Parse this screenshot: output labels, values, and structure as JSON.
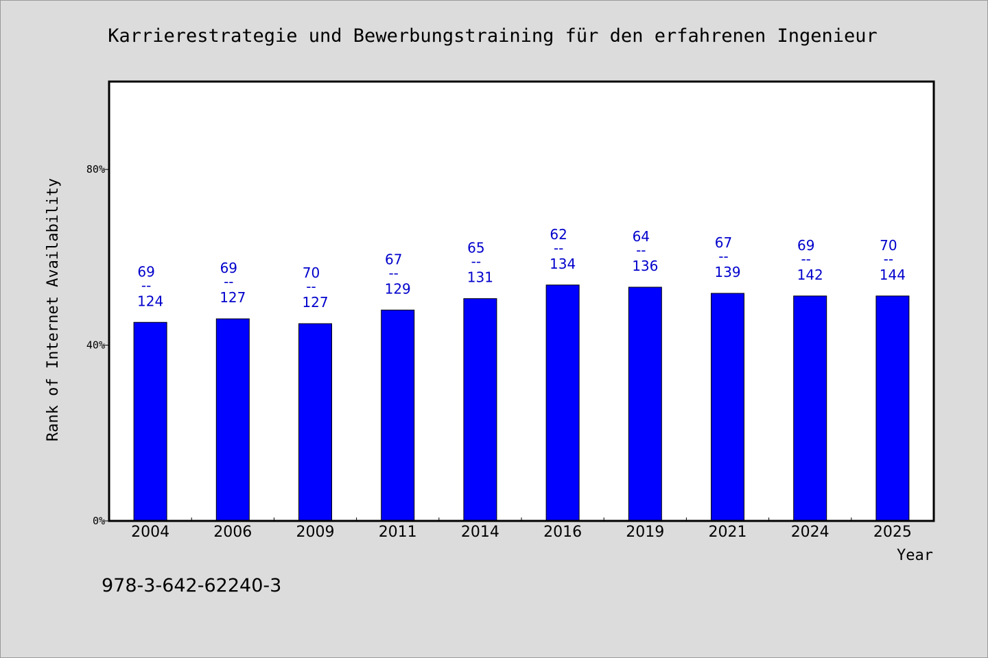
{
  "chart_data": {
    "type": "bar",
    "title": "Karrierestrategie und Bewerbungstraining für den erfahrenen Ingenieur",
    "xlabel": "Year",
    "ylabel": "Rank of Internet Availability",
    "categories": [
      "2004",
      "2006",
      "2009",
      "2011",
      "2014",
      "2016",
      "2019",
      "2021",
      "2024",
      "2025"
    ],
    "values": [
      45.2,
      46.0,
      44.9,
      48.0,
      50.6,
      53.7,
      53.2,
      51.8,
      51.2,
      51.2
    ],
    "labels": [
      {
        "top": "69",
        "sep": "--",
        "bottom": "124"
      },
      {
        "top": "69",
        "sep": "--",
        "bottom": "127"
      },
      {
        "top": "70",
        "sep": "--",
        "bottom": "127"
      },
      {
        "top": "67",
        "sep": "--",
        "bottom": "129"
      },
      {
        "top": "65",
        "sep": "--",
        "bottom": "131"
      },
      {
        "top": "62",
        "sep": "--",
        "bottom": "134"
      },
      {
        "top": "64",
        "sep": "--",
        "bottom": "136"
      },
      {
        "top": "67",
        "sep": "--",
        "bottom": "139"
      },
      {
        "top": "69",
        "sep": "--",
        "bottom": "142"
      },
      {
        "top": "70",
        "sep": "--",
        "bottom": "144"
      }
    ],
    "yticks": [
      0,
      40,
      80
    ],
    "ytick_labels": [
      "0%",
      "40%",
      "80%"
    ],
    "ylim": [
      0,
      100
    ],
    "grid": false,
    "bar_color": "#0000ff",
    "label_color": "#0000cc"
  },
  "footer": {
    "isbn": "978-3-642-62240-3"
  }
}
